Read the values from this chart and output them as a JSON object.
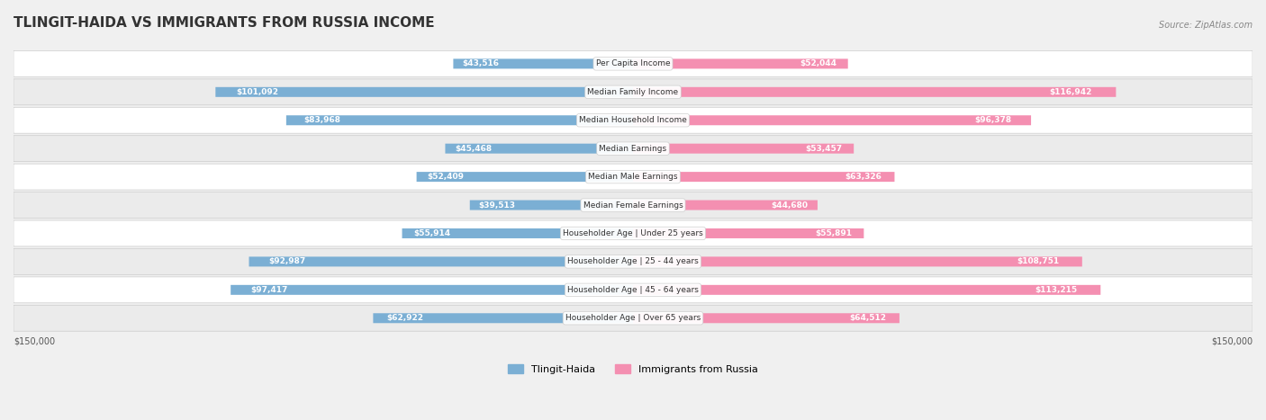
{
  "title": "TLINGIT-HAIDA VS IMMIGRANTS FROM RUSSIA INCOME",
  "source": "Source: ZipAtlas.com",
  "categories": [
    "Per Capita Income",
    "Median Family Income",
    "Median Household Income",
    "Median Earnings",
    "Median Male Earnings",
    "Median Female Earnings",
    "Householder Age | Under 25 years",
    "Householder Age | 25 - 44 years",
    "Householder Age | 45 - 64 years",
    "Householder Age | Over 65 years"
  ],
  "tlingit_values": [
    43516,
    101092,
    83968,
    45468,
    52409,
    39513,
    55914,
    92987,
    97417,
    62922
  ],
  "russia_values": [
    52044,
    116942,
    96378,
    53457,
    63326,
    44680,
    55891,
    108751,
    113215,
    64512
  ],
  "tlingit_labels": [
    "$43,516",
    "$101,092",
    "$83,968",
    "$45,468",
    "$52,409",
    "$39,513",
    "$55,914",
    "$92,987",
    "$97,417",
    "$62,922"
  ],
  "russia_labels": [
    "$52,044",
    "$116,942",
    "$96,378",
    "$53,457",
    "$63,326",
    "$44,680",
    "$55,891",
    "$108,751",
    "$113,215",
    "$64,512"
  ],
  "tlingit_color": "#7bafd4",
  "russia_color": "#f48fb1",
  "tlingit_color_dark": "#5b9ec9",
  "russia_color_dark": "#f06292",
  "max_value": 150000,
  "label_color_outside": "#555555",
  "label_color_inside": "#ffffff",
  "background_color": "#f5f5f5",
  "bar_background": "#e8e8e8",
  "legend_tlingit": "Tlingit-Haida",
  "legend_russia": "Immigrants from Russia",
  "x_tick_label_left": "$150,000",
  "x_tick_label_right": "$150,000"
}
